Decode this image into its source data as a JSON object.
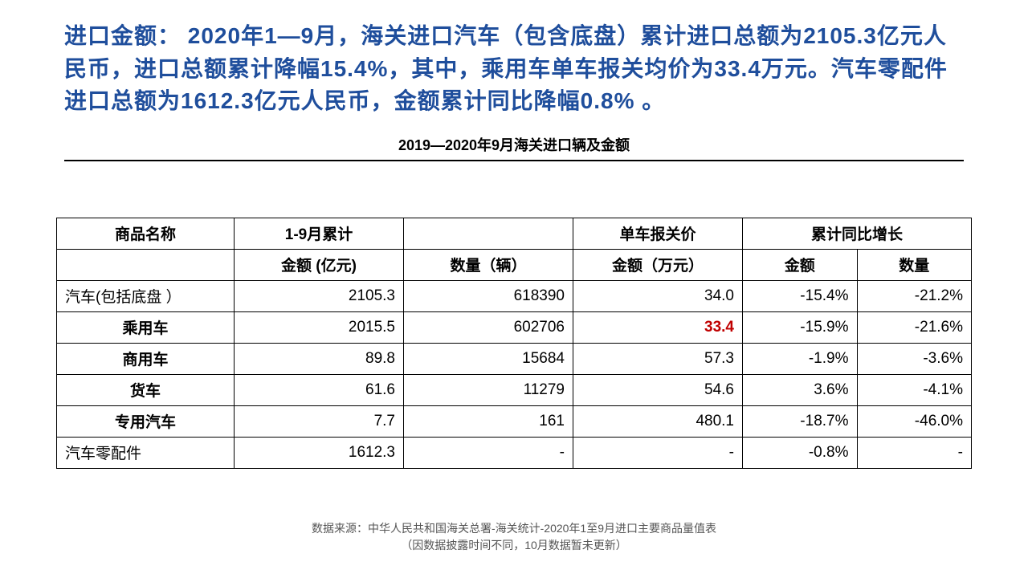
{
  "colors": {
    "headline": "#1f4e9c",
    "highlight": "#c00000",
    "text": "#000000",
    "footer": "#555555",
    "border": "#000000",
    "background": "#ffffff"
  },
  "headline": "进口金额： 2020年1—9月，海关进口汽车（包含底盘）累计进口总额为2105.3亿元人民币，进口总额累计降幅15.4%，其中，乘用车单车报关均价为33.4万元。汽车零配件进口总额为1612.3亿元人民币，金额累计同比降幅0.8% 。",
  "table_title": "2019—2020年9月海关进口辆及金额",
  "columns": {
    "product": "商品名称",
    "cumulative": "1-9月累计",
    "amount": "金额 (亿元)",
    "quantity": "数量（辆）",
    "unit_price_group": "单车报关价",
    "unit_price": "金额（万元）",
    "growth_group": "累计同比增长",
    "growth_amount": "金额",
    "growth_quantity": "数量"
  },
  "rows": [
    {
      "name": "汽车(包括底盘 ）",
      "align": "left",
      "bold": false,
      "amount": "2105.3",
      "quantity": "618390",
      "unit_price": "34.0",
      "g_amount": "-15.4%",
      "g_quantity": "-21.2%",
      "highlight_price": false
    },
    {
      "name": "乘用车",
      "align": "center",
      "bold": true,
      "amount": "2015.5",
      "quantity": "602706",
      "unit_price": "33.4",
      "g_amount": "-15.9%",
      "g_quantity": "-21.6%",
      "highlight_price": true
    },
    {
      "name": "商用车",
      "align": "center",
      "bold": true,
      "amount": "89.8",
      "quantity": "15684",
      "unit_price": "57.3",
      "g_amount": "-1.9%",
      "g_quantity": "-3.6%",
      "highlight_price": false
    },
    {
      "name": "货车",
      "align": "center",
      "bold": true,
      "amount": "61.6",
      "quantity": "11279",
      "unit_price": "54.6",
      "g_amount": "3.6%",
      "g_quantity": "-4.1%",
      "highlight_price": false
    },
    {
      "name": "专用汽车",
      "align": "center",
      "bold": true,
      "amount": "7.7",
      "quantity": "161",
      "unit_price": "480.1",
      "g_amount": "-18.7%",
      "g_quantity": "-46.0%",
      "highlight_price": false
    },
    {
      "name": "汽车零配件",
      "align": "left",
      "bold": false,
      "amount": "1612.3",
      "quantity": "-",
      "unit_price": "-",
      "g_amount": "-0.8%",
      "g_quantity": "-",
      "highlight_price": false
    }
  ],
  "footer": {
    "line1": "数据来源：中华人民共和国海关总署-海关统计-2020年1至9月进口主要商品量值表",
    "line2": "（因数据披露时间不同，10月数据暂未更新）"
  }
}
